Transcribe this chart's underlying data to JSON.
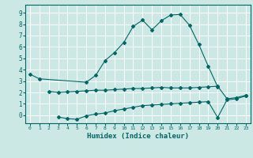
{
  "xlabel": "Humidex (Indice chaleur)",
  "background_color": "#cce8e4",
  "line_color": "#006666",
  "grid_color": "#ffffff",
  "ylim": [
    -0.7,
    9.7
  ],
  "xlim": [
    -0.5,
    23.5
  ],
  "line1_x": [
    0,
    1,
    6,
    7,
    8,
    9,
    10,
    11,
    12,
    13,
    14,
    15,
    16,
    17,
    18,
    19,
    20
  ],
  "line1_y": [
    3.6,
    3.2,
    2.9,
    3.5,
    4.8,
    5.5,
    6.4,
    7.8,
    8.35,
    7.5,
    8.3,
    8.8,
    8.85,
    7.9,
    6.2,
    4.3,
    2.5
  ],
  "line2_x": [
    2,
    3,
    4,
    5,
    6,
    7,
    8,
    9,
    10,
    11,
    12,
    13,
    14,
    15,
    16,
    17,
    18,
    19,
    20,
    21,
    22,
    23
  ],
  "line2_y": [
    2.1,
    2.0,
    2.05,
    2.1,
    2.15,
    2.2,
    2.2,
    2.25,
    2.3,
    2.35,
    2.35,
    2.4,
    2.45,
    2.4,
    2.4,
    2.4,
    2.45,
    2.5,
    2.55,
    1.45,
    1.55,
    1.75
  ],
  "line3_x": [
    3,
    4,
    5,
    6,
    7,
    8,
    9,
    10,
    11,
    12,
    13,
    14,
    15,
    16,
    17,
    18,
    19,
    20,
    21,
    22,
    23
  ],
  "line3_y": [
    -0.15,
    -0.3,
    -0.35,
    -0.05,
    0.1,
    0.2,
    0.4,
    0.55,
    0.7,
    0.85,
    0.9,
    0.95,
    1.0,
    1.05,
    1.1,
    1.15,
    1.2,
    -0.2,
    1.35,
    1.45,
    1.7
  ],
  "yticks": [
    0,
    1,
    2,
    3,
    4,
    5,
    6,
    7,
    8,
    9
  ],
  "xticks": [
    0,
    1,
    2,
    3,
    4,
    5,
    6,
    7,
    8,
    9,
    10,
    11,
    12,
    13,
    14,
    15,
    16,
    17,
    18,
    19,
    20,
    21,
    22,
    23
  ]
}
